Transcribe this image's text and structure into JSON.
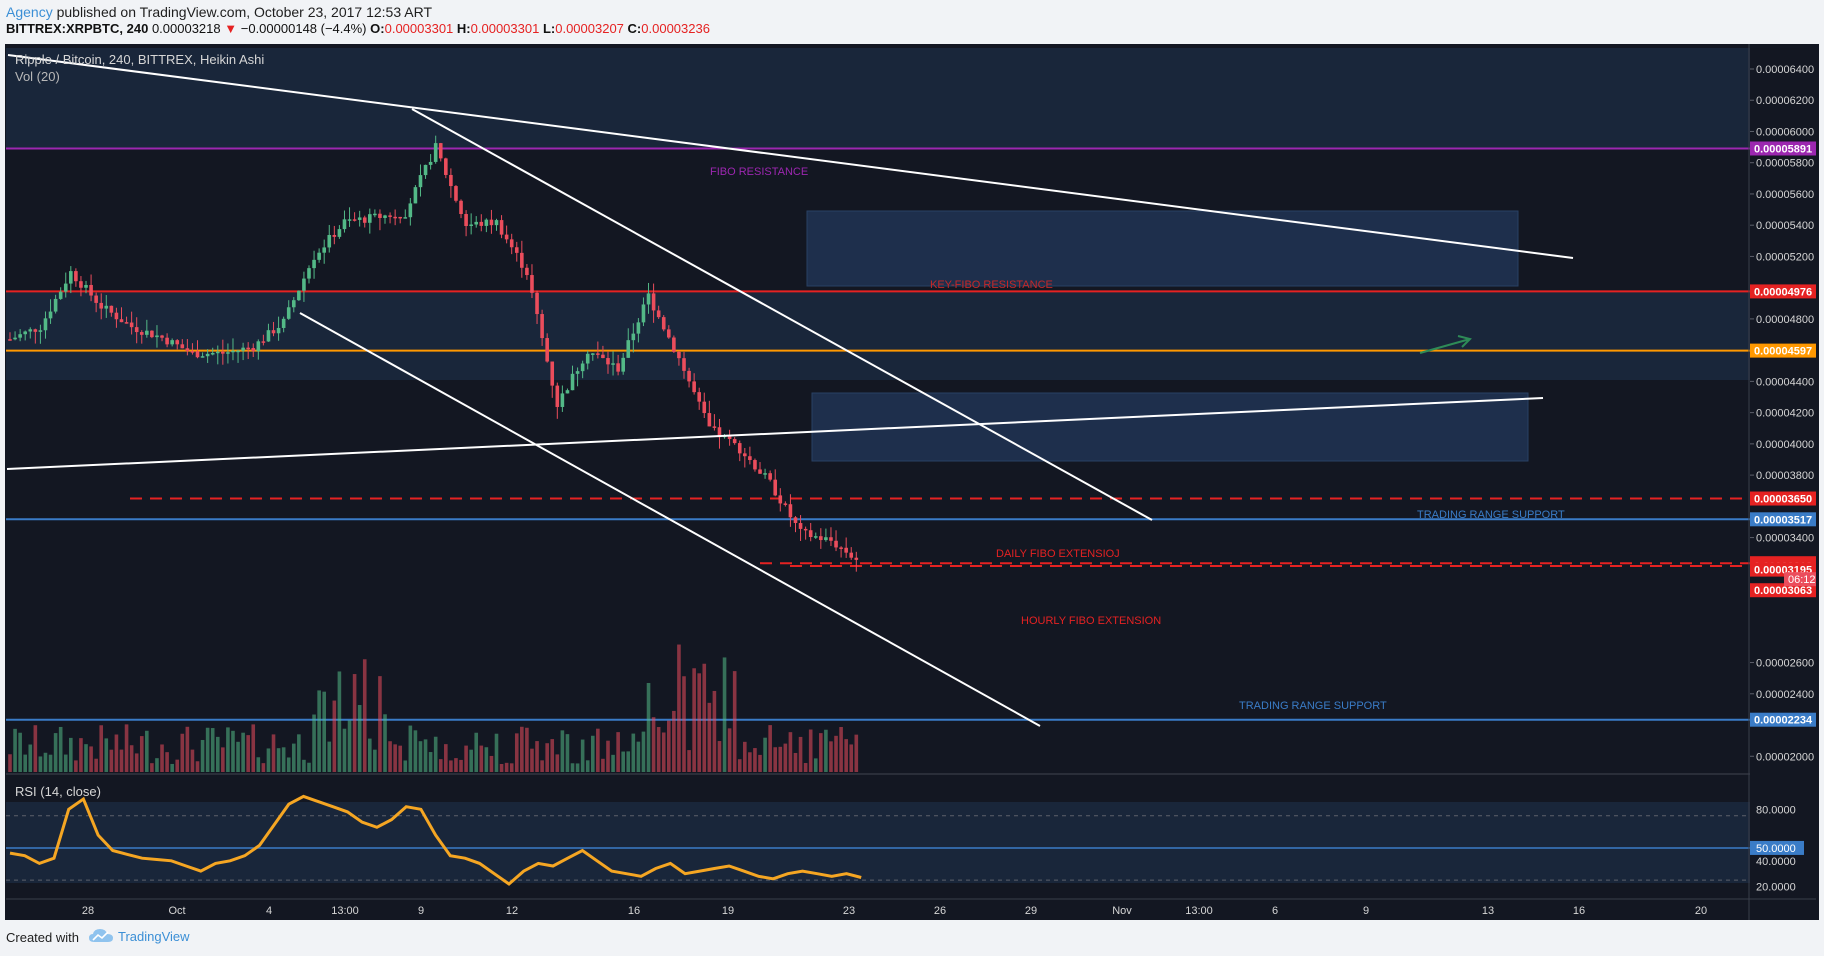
{
  "header": {
    "author": "Agency",
    "published": "published on TradingView.com, October 23, 2017 12:53 ART",
    "symbol": "BITTREX:XRPBTC, 240",
    "last": "0.00003218",
    "change_arrow": "▼",
    "change": "−0.00000148 (−4.4%)",
    "o_label": "O:",
    "o_value": "0.00003301",
    "h_label": "H:",
    "h_value": "0.00003301",
    "l_label": "L:",
    "l_value": "0.00003207",
    "c_label": "C:",
    "c_value": "0.00003236"
  },
  "legend": {
    "main": "Ripple / Bitcoin, 240, BITTREX, Heikin Ashi",
    "volume": "Vol (20)",
    "rsi": "RSI (14, close)"
  },
  "footer": {
    "created": "Created with",
    "brand": "TradingView",
    "logo_icon": "tradingview-cloud-logo-icon"
  },
  "colors": {
    "background": "#131722",
    "up": "#53b987",
    "down": "#eb4d5c",
    "fibo_purple": "#9c27b0",
    "key_red": "#e52222",
    "orange": "#ff9800",
    "support_blue": "#3a7cc7",
    "rsi_line": "#f5a623",
    "zone": "#1c2d45"
  },
  "chart_data": [
    {
      "type": "candlestick",
      "title": "Ripple / Bitcoin, 240, BITTREX, Heikin Ashi",
      "ylim": [
        1.88e-05,
        6.56e-05
      ],
      "y_ticks": [
        "0.00006400",
        "0.00006200",
        "0.00006000",
        "0.00005800",
        "0.00005600",
        "0.00005400",
        "0.00005200",
        "0.00004800",
        "0.00004400",
        "0.00004200",
        "0.00004000",
        "0.00003800",
        "0.00003400",
        "0.00002600",
        "0.00002400",
        "0.00002000"
      ],
      "x_ticks": [
        "28",
        "Oct",
        "4",
        "13:00",
        "9",
        "12",
        "16",
        "19",
        "23",
        "26",
        "29",
        "Nov",
        "13:00",
        "6",
        "9",
        "13",
        "16",
        "20"
      ],
      "close_path": [
        [
          "Sep 25",
          4.67e-05
        ],
        [
          "Sep 26",
          4.75e-05
        ],
        [
          "Sep 27",
          5.1e-05
        ],
        [
          "Sep 28",
          4.88e-05
        ],
        [
          "Sep 29",
          4.75e-05
        ],
        [
          "Sep 30",
          4.68e-05
        ],
        [
          "Oct 1",
          4.58e-05
        ],
        [
          "Oct 2",
          4.58e-05
        ],
        [
          "Oct 3",
          4.62e-05
        ],
        [
          "Oct 4",
          4.78e-05
        ],
        [
          "Oct 5",
          5.2e-05
        ],
        [
          "Oct 6",
          5.42e-05
        ],
        [
          "Oct 7",
          5.45e-05
        ],
        [
          "Oct 8",
          5.48e-05
        ],
        [
          "Oct 9",
          5.9e-05
        ],
        [
          "Oct 10",
          5.4e-05
        ],
        [
          "Oct 11",
          5.42e-05
        ],
        [
          "Oct 12",
          5.1e-05
        ],
        [
          "Oct 13",
          4.25e-05
        ],
        [
          "Oct 14",
          4.6e-05
        ],
        [
          "Oct 15",
          4.48e-05
        ],
        [
          "Oct 16",
          4.95e-05
        ],
        [
          "Oct 17",
          4.55e-05
        ],
        [
          "Oct 18",
          4.1e-05
        ],
        [
          "Oct 19",
          3.97e-05
        ],
        [
          "Oct 20",
          3.75e-05
        ],
        [
          "Oct 21",
          3.43e-05
        ],
        [
          "Oct 22",
          3.38e-05
        ],
        [
          "Oct 23",
          3.24e-05
        ]
      ],
      "levels": [
        {
          "label": "0.00005891",
          "value": 5.891e-05,
          "color": "#9c27b0",
          "style": "solid"
        },
        {
          "label": "0.00004976",
          "value": 4.976e-05,
          "color": "#e52222",
          "style": "solid"
        },
        {
          "label": "0.00004597",
          "value": 4.597e-05,
          "color": "#ff9800",
          "style": "solid"
        },
        {
          "label": "0.00003650",
          "value": 3.65e-05,
          "color": "#e52222",
          "style": "dashed"
        },
        {
          "label": "0.00003517",
          "value": 3.517e-05,
          "color": "#3a7cc7",
          "style": "solid"
        },
        {
          "label": "0.00003236",
          "value": 3.236e-05,
          "color": "#e52222",
          "style": "dashed"
        },
        {
          "label": "0.00003218",
          "value": 3.218e-05,
          "color": "#e52222",
          "style": "dashed"
        },
        {
          "label": "0.00003195",
          "value": 3.195e-05,
          "color": "#e52222",
          "style": "none"
        },
        {
          "label": "0.00003063",
          "value": 3.063e-05,
          "color": "#e52222",
          "style": "none"
        },
        {
          "label": "0.00002234",
          "value": 2.234e-05,
          "color": "#3a7cc7",
          "style": "solid"
        }
      ],
      "countdown": "06:12",
      "annotations": [
        {
          "text": "FIBO RESISTANCE",
          "color": "#9c27b0"
        },
        {
          "text": "KEY-FIBO RESISTANCE",
          "color": "#c62828"
        },
        {
          "text": "TRADING RANGE SUPPORT",
          "color": "#3a7cc7"
        },
        {
          "text": "DAILY FIBO EXTENSIOJ",
          "color": "#e52222"
        },
        {
          "text": "HOURLY FIBO EXTENSION",
          "color": "#e52222"
        },
        {
          "text": "TRADING RANGE SUPPORT",
          "color": "#3a7cc7"
        }
      ]
    },
    {
      "type": "line",
      "title": "RSI (14, close)",
      "ylim": [
        15,
        95
      ],
      "y_ticks": [
        "80.0000",
        "50.0000",
        "40.0000",
        "20.0000"
      ],
      "highlight": "50.0000",
      "bands": [
        75,
        25
      ],
      "values": [
        46,
        44,
        38,
        42,
        80,
        88,
        60,
        48,
        45,
        42,
        41,
        40,
        36,
        32,
        38,
        40,
        44,
        52,
        68,
        84,
        90,
        86,
        82,
        78,
        70,
        66,
        72,
        82,
        80,
        60,
        44,
        42,
        38,
        30,
        22,
        32,
        38,
        36,
        42,
        48,
        40,
        32,
        30,
        28,
        34,
        38,
        30,
        32,
        34,
        36,
        32,
        28,
        26,
        30,
        32,
        30,
        28,
        30,
        27
      ]
    }
  ]
}
